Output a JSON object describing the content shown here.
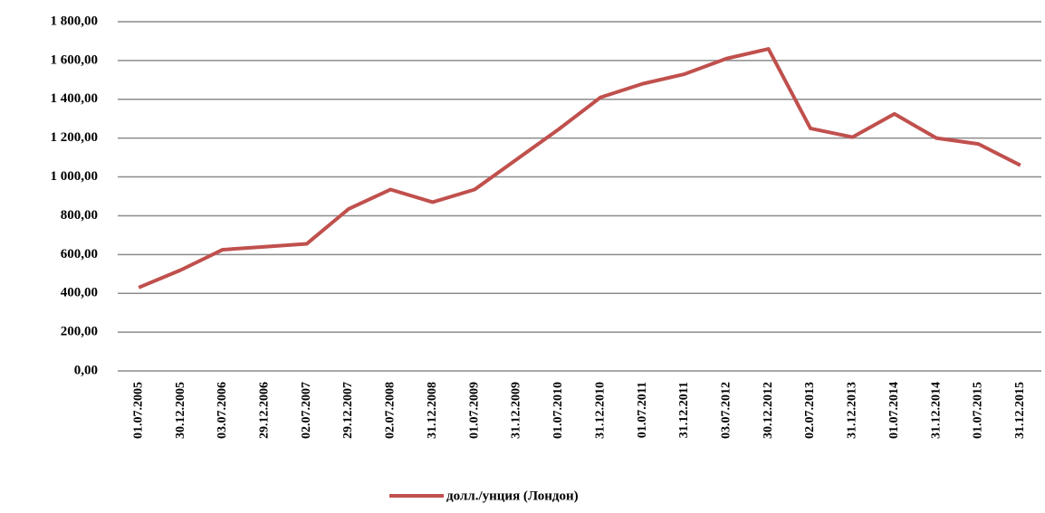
{
  "chart_data": {
    "type": "line",
    "categories": [
      "01.07.2005",
      "30.12.2005",
      "03.07.2006",
      "29.12.2006",
      "02.07.2007",
      "29.12.2007",
      "02.07.2008",
      "31.12.2008",
      "01.07.2009",
      "31.12.2009",
      "01.07.2010",
      "31.12.2010",
      "01.07.2011",
      "31.12.2011",
      "03.07.2012",
      "30.12.2012",
      "02.07.2013",
      "31.12.2013",
      "01.07.2014",
      "31.12.2014",
      "01.07.2015",
      "31.12.2015"
    ],
    "series": [
      {
        "name": "долл./унция (Лондон)",
        "color": "#c0504d",
        "values": [
          430,
          520,
          625,
          640,
          655,
          835,
          935,
          870,
          935,
          1090,
          1245,
          1410,
          1480,
          1530,
          1610,
          1660,
          1250,
          1205,
          1325,
          1200,
          1170,
          1060
        ]
      }
    ],
    "ylim": [
      0,
      1800
    ],
    "yticks": [
      {
        "value": 0,
        "label": "0,00"
      },
      {
        "value": 200,
        "label": "200,00"
      },
      {
        "value": 400,
        "label": "400,00"
      },
      {
        "value": 600,
        "label": "600,00"
      },
      {
        "value": 800,
        "label": "800,00"
      },
      {
        "value": 1000,
        "label": "1 000,00"
      },
      {
        "value": 1200,
        "label": "1 200,00"
      },
      {
        "value": 1400,
        "label": "1 400,00"
      },
      {
        "value": 1600,
        "label": "1 600,00"
      },
      {
        "value": 1800,
        "label": "1 800,00"
      }
    ],
    "grid": true,
    "legend": "bottom"
  }
}
